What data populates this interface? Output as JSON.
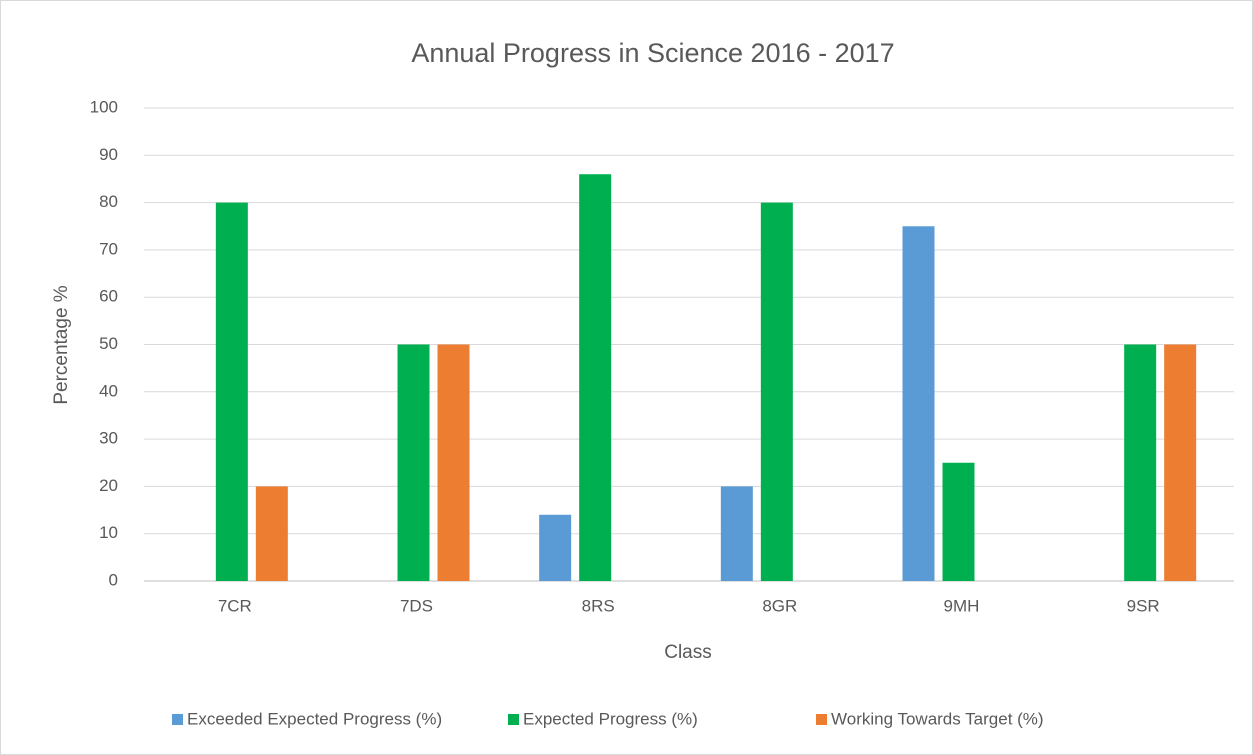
{
  "chart_data": {
    "type": "bar",
    "title": "Annual Progress in Science 2016 - 2017",
    "x_label": "Class",
    "y_label": "Percentage %",
    "categories": [
      "7CR",
      "7DS",
      "8RS",
      "8GR",
      "9MH",
      "9SR"
    ],
    "series": [
      {
        "name": "Exceeded Expected Progress (%)",
        "color": "#5b9bd5",
        "values": [
          0,
          0,
          14,
          20,
          75,
          0
        ]
      },
      {
        "name": "Expected Progress (%)",
        "color": "#00b050",
        "values": [
          80,
          50,
          86,
          80,
          25,
          50
        ]
      },
      {
        "name": "Working Towards Target (%)",
        "color": "#ed7d31",
        "values": [
          20,
          50,
          0,
          0,
          0,
          50
        ]
      }
    ],
    "ylim": [
      0,
      100
    ],
    "yticks": [
      0,
      10,
      20,
      30,
      40,
      50,
      60,
      70,
      80,
      90,
      100
    ],
    "grid": true,
    "legend": "bottom"
  }
}
